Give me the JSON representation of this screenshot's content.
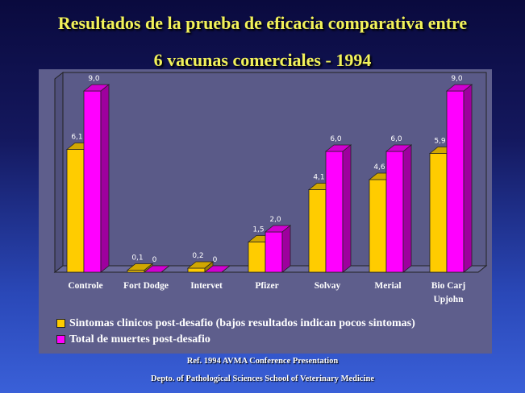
{
  "title_line1": "Resultados de la prueba de eficacia comparativa entre",
  "title_line2": "6 vacunas comerciales - 1994",
  "footer_line1": "Ref. 1994 AVMA Conference Presentation",
  "footer_line2": "Depto. of Pathological Sciences School of Veterinary Medicine",
  "chart_data": {
    "type": "bar",
    "categories": [
      "Controle",
      "Fort Dodge",
      "Intervet",
      "Pfizer",
      "Solvay",
      "Merial",
      "Bio Carj\nUpjohn"
    ],
    "series": [
      {
        "name": "Sintomas clinicos post-desafio (bajos resultados indican pocos sintomas)",
        "values": [
          6.1,
          0.1,
          0.2,
          1.5,
          4.1,
          4.6,
          5.9
        ],
        "labels": [
          "6,1",
          "0,1",
          "0,2",
          "1,5",
          "4,1",
          "4,6",
          "5,9"
        ],
        "color": "#ffcc00"
      },
      {
        "name": "Total de muertes post-desafio",
        "values": [
          9.0,
          0,
          0,
          2.0,
          6.0,
          6.0,
          9.0
        ],
        "labels": [
          "9,0",
          "0",
          "0",
          "2,0",
          "6,0",
          "6,0",
          "9,0"
        ],
        "color": "#ff00ff"
      }
    ],
    "ylim": [
      0,
      9.6
    ],
    "legend_position": "bottom-left",
    "background_color": "#5e5e8c"
  }
}
